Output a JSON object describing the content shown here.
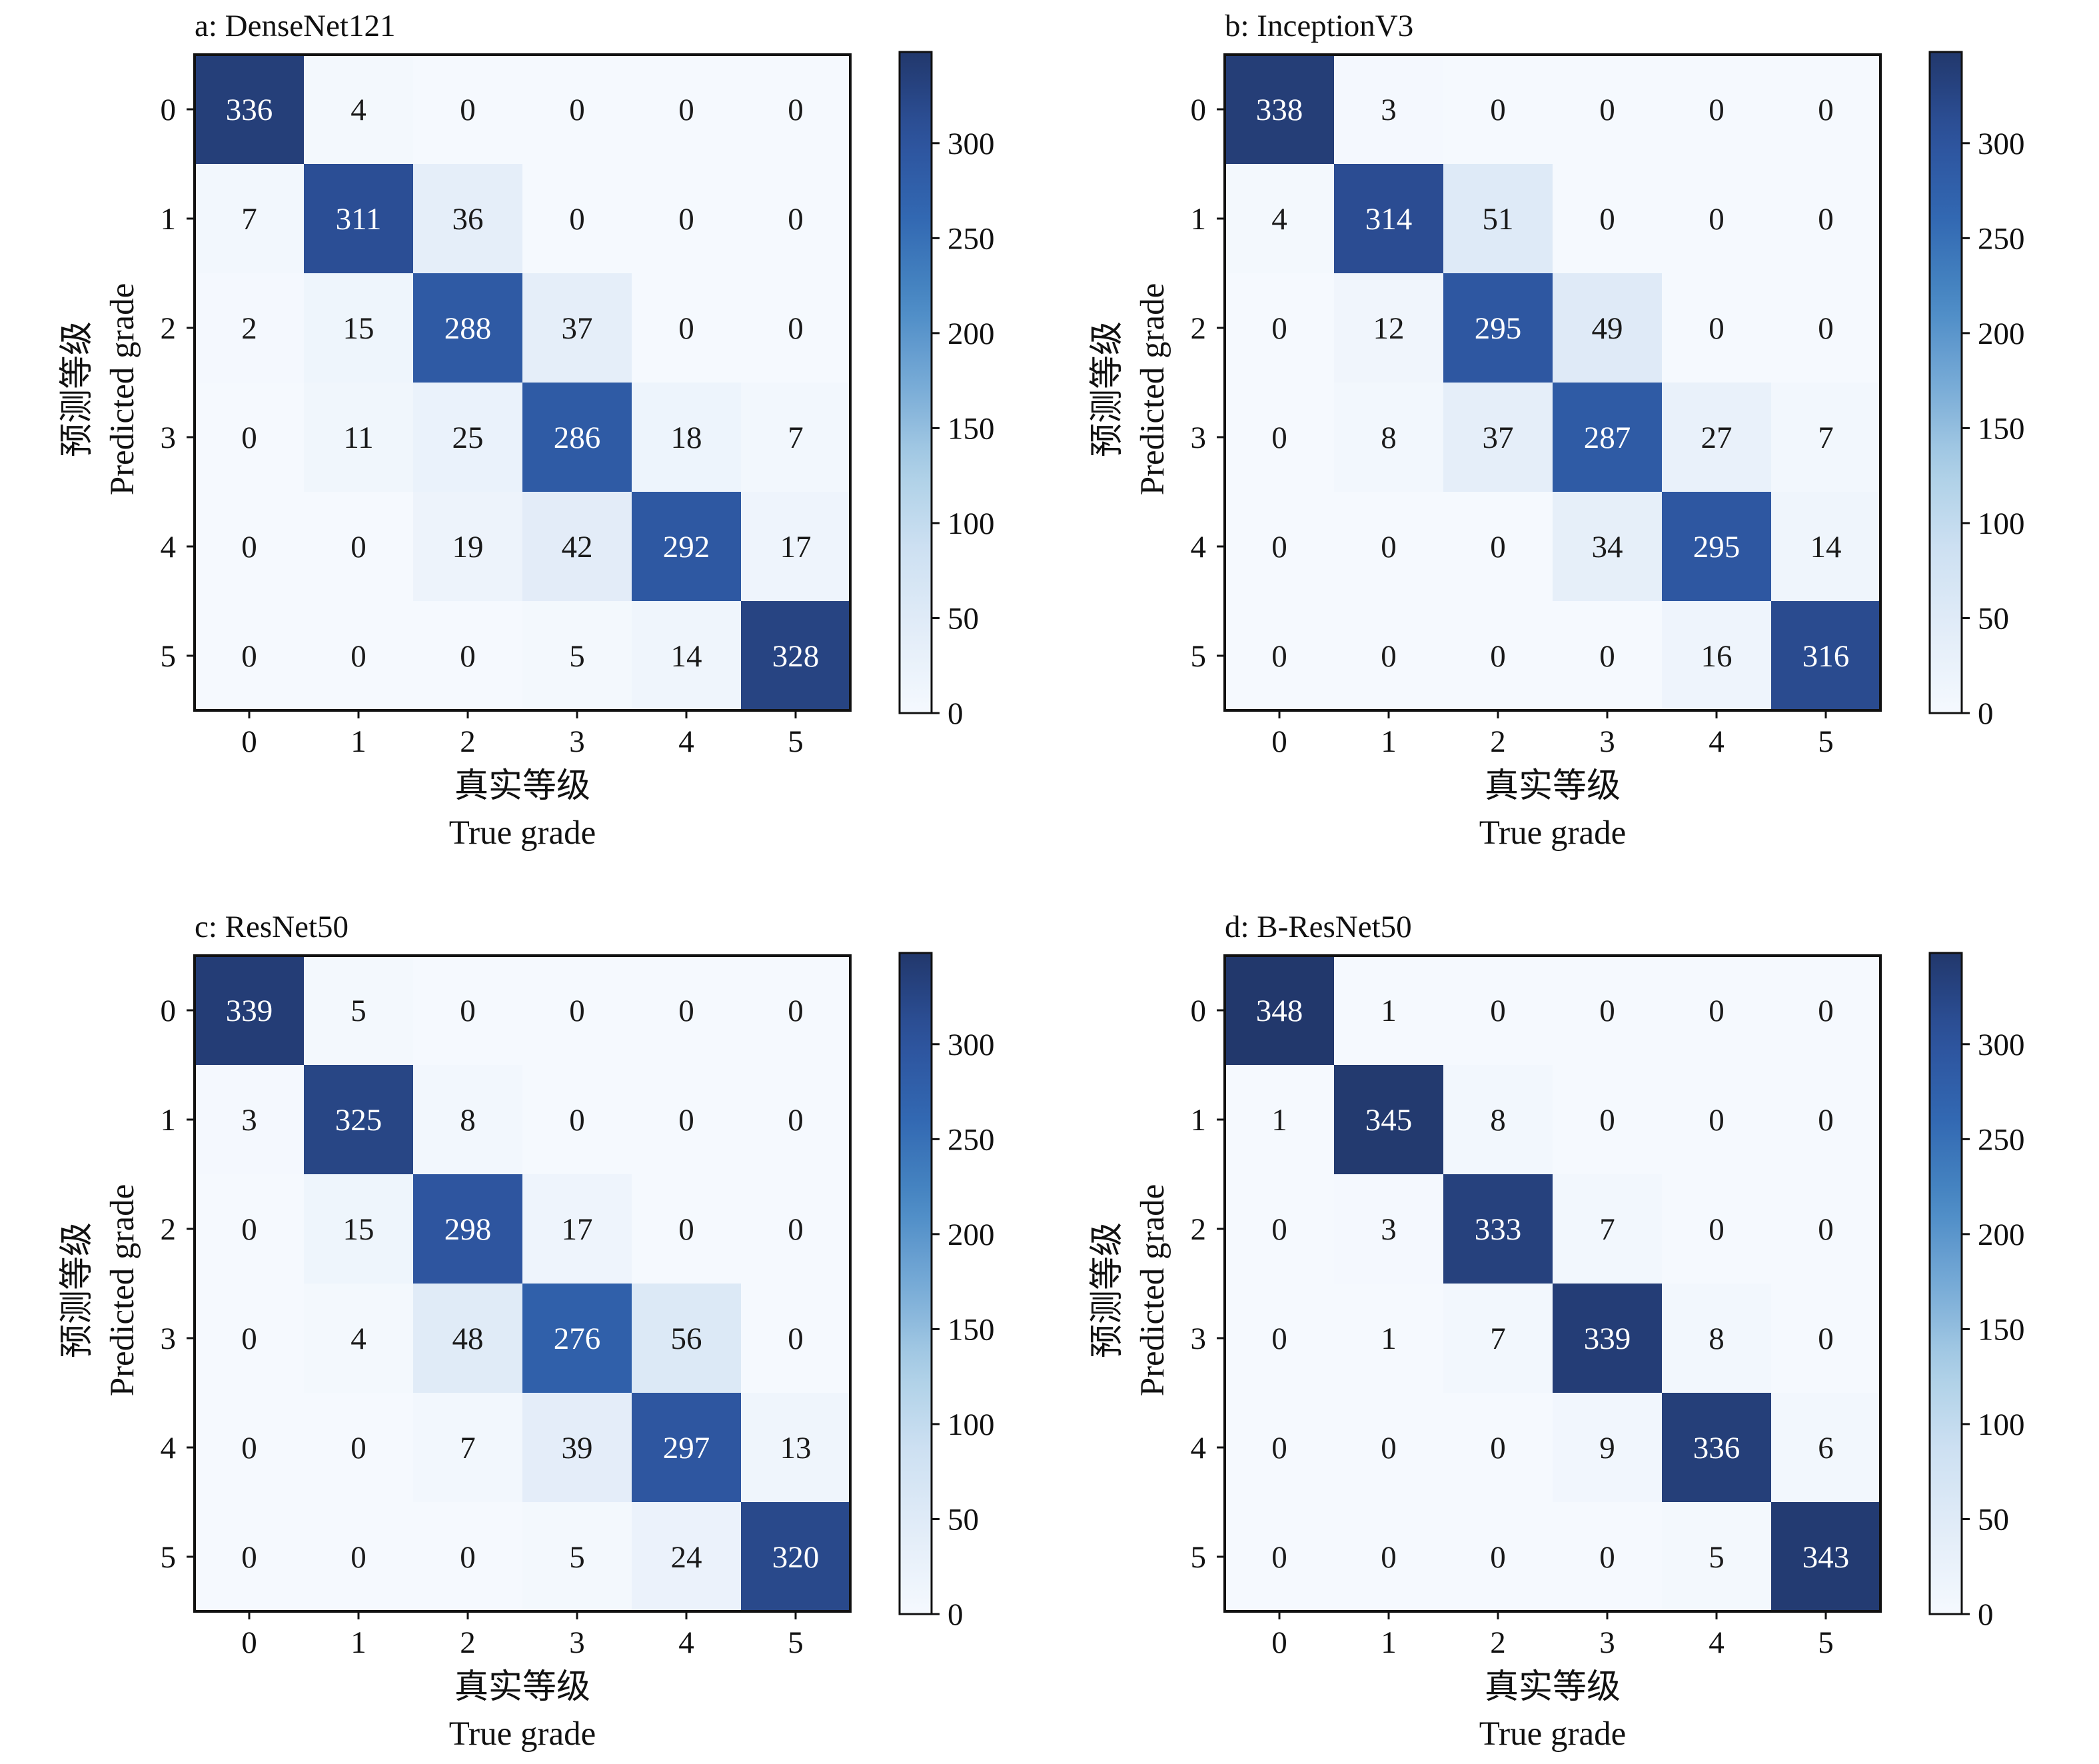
{
  "chart_data": [
    {
      "type": "heatmap",
      "title": "a: DenseNet121",
      "xlabel_cn": "真实等级",
      "xlabel": "True grade",
      "ylabel_cn": "预测等级",
      "ylabel": "Predicted grade",
      "x_categories": [
        "0",
        "1",
        "2",
        "3",
        "4",
        "5"
      ],
      "y_categories": [
        "0",
        "1",
        "2",
        "3",
        "4",
        "5"
      ],
      "values": [
        [
          336,
          4,
          0,
          0,
          0,
          0
        ],
        [
          7,
          311,
          36,
          0,
          0,
          0
        ],
        [
          2,
          15,
          288,
          37,
          0,
          0
        ],
        [
          0,
          11,
          25,
          286,
          18,
          7
        ],
        [
          0,
          0,
          19,
          42,
          292,
          17
        ],
        [
          0,
          0,
          0,
          5,
          14,
          328
        ]
      ],
      "colorbar_ticks": [
        0,
        50,
        100,
        150,
        200,
        250,
        300
      ],
      "color_range": [
        0,
        348
      ],
      "colormap": "Blues"
    },
    {
      "type": "heatmap",
      "title": "b: InceptionV3",
      "xlabel_cn": "真实等级",
      "xlabel": "True grade",
      "ylabel_cn": "预测等级",
      "ylabel": "Predicted grade",
      "x_categories": [
        "0",
        "1",
        "2",
        "3",
        "4",
        "5"
      ],
      "y_categories": [
        "0",
        "1",
        "2",
        "3",
        "4",
        "5"
      ],
      "values": [
        [
          338,
          3,
          0,
          0,
          0,
          0
        ],
        [
          4,
          314,
          51,
          0,
          0,
          0
        ],
        [
          0,
          12,
          295,
          49,
          0,
          0
        ],
        [
          0,
          8,
          37,
          287,
          27,
          7
        ],
        [
          0,
          0,
          0,
          34,
          295,
          14
        ],
        [
          0,
          0,
          0,
          0,
          16,
          316
        ]
      ],
      "colorbar_ticks": [
        0,
        50,
        100,
        150,
        200,
        250,
        300
      ],
      "color_range": [
        0,
        348
      ],
      "colormap": "Blues"
    },
    {
      "type": "heatmap",
      "title": "c: ResNet50",
      "xlabel_cn": "真实等级",
      "xlabel": "True grade",
      "ylabel_cn": "预测等级",
      "ylabel": "Predicted grade",
      "x_categories": [
        "0",
        "1",
        "2",
        "3",
        "4",
        "5"
      ],
      "y_categories": [
        "0",
        "1",
        "2",
        "3",
        "4",
        "5"
      ],
      "values": [
        [
          339,
          5,
          0,
          0,
          0,
          0
        ],
        [
          3,
          325,
          8,
          0,
          0,
          0
        ],
        [
          0,
          15,
          298,
          17,
          0,
          0
        ],
        [
          0,
          4,
          48,
          276,
          56,
          0
        ],
        [
          0,
          0,
          7,
          39,
          297,
          13
        ],
        [
          0,
          0,
          0,
          5,
          24,
          320
        ]
      ],
      "colorbar_ticks": [
        0,
        50,
        100,
        150,
        200,
        250,
        300
      ],
      "color_range": [
        0,
        348
      ],
      "colormap": "Blues"
    },
    {
      "type": "heatmap",
      "title": "d: B-ResNet50",
      "xlabel_cn": "真实等级",
      "xlabel": "True grade",
      "ylabel_cn": "预测等级",
      "ylabel": "Predicted grade",
      "x_categories": [
        "0",
        "1",
        "2",
        "3",
        "4",
        "5"
      ],
      "y_categories": [
        "0",
        "1",
        "2",
        "3",
        "4",
        "5"
      ],
      "values": [
        [
          348,
          1,
          0,
          0,
          0,
          0
        ],
        [
          1,
          345,
          8,
          0,
          0,
          0
        ],
        [
          0,
          3,
          333,
          7,
          0,
          0
        ],
        [
          0,
          1,
          7,
          339,
          8,
          0
        ],
        [
          0,
          0,
          0,
          9,
          336,
          6
        ],
        [
          0,
          0,
          0,
          0,
          5,
          343
        ]
      ],
      "colorbar_ticks": [
        0,
        50,
        100,
        150,
        200,
        250,
        300
      ],
      "color_range": [
        0,
        348
      ],
      "colormap": "Blues"
    }
  ]
}
